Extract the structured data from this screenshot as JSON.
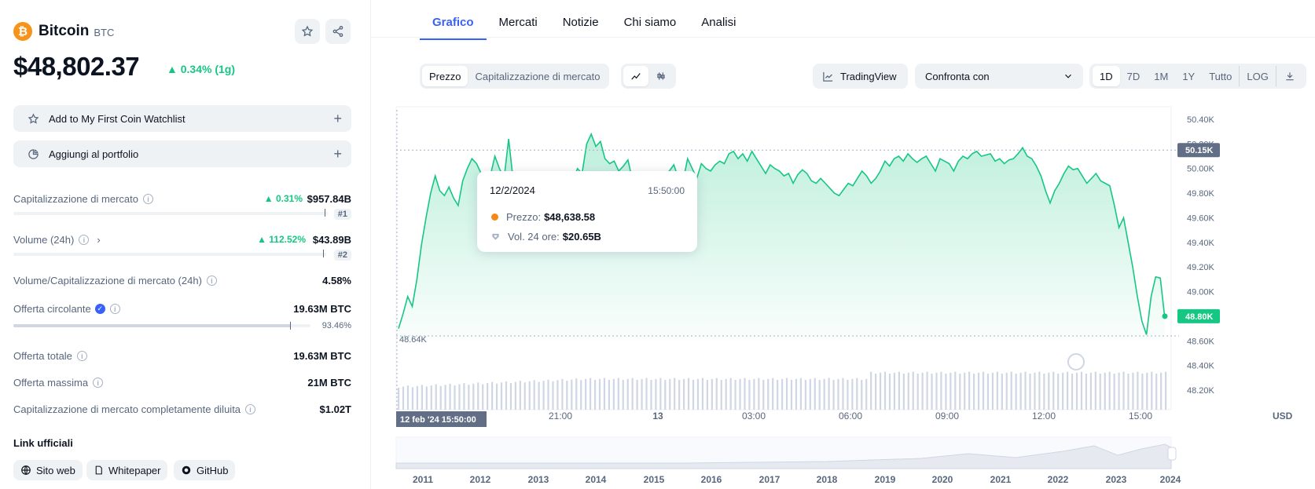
{
  "coin": {
    "name": "Bitcoin",
    "symbol": "BTC",
    "logo_glyph": "₿",
    "logo_color": "#f7931a"
  },
  "price": {
    "value": "$48,802.37",
    "change": "▲ 0.34% (1g)",
    "change_color": "#16c784"
  },
  "actions": {
    "watchlist": "Add to My First Coin Watchlist",
    "portfolio": "Aggiungi al portfolio"
  },
  "stats": {
    "market_cap": {
      "label": "Capitalizzazione di mercato",
      "change": "▲ 0.31%",
      "value": "$957.84B",
      "rank": "#1"
    },
    "volume": {
      "label": "Volume (24h)",
      "change": "▲ 112.52%",
      "value": "$43.89B",
      "rank": "#2"
    },
    "vol_mcap": {
      "label": "Volume/Capitalizzazione di mercato (24h)",
      "value": "4.58%"
    },
    "circulating": {
      "label": "Offerta circolante",
      "value": "19.63M BTC",
      "percent": "93.46%",
      "fill": 0.9346
    },
    "total": {
      "label": "Offerta totale",
      "value": "19.63M BTC"
    },
    "max": {
      "label": "Offerta massima",
      "value": "21M BTC"
    },
    "fdv": {
      "label": "Capitalizzazione di mercato completamente diluita",
      "value": "$1.02T"
    }
  },
  "links": {
    "title": "Link ufficiali",
    "items": [
      "Sito web",
      "Whitepaper",
      "GitHub"
    ]
  },
  "tabs": [
    "Grafico",
    "Mercati",
    "Notizie",
    "Chi siamo",
    "Analisi"
  ],
  "controls": {
    "type_options": [
      "Prezzo",
      "Capitalizzazione di mercato"
    ],
    "tradingview": "TradingView",
    "compare": "Confronta con",
    "ranges": [
      "1D",
      "7D",
      "1M",
      "1Y",
      "Tutto",
      "LOG"
    ]
  },
  "tooltip": {
    "date": "12/2/2024",
    "time": "15:50:00",
    "price_label": "Prezzo:",
    "price_value": "$48,638.58",
    "vol_label": "Vol. 24 ore:",
    "vol_value": "$20.65B"
  },
  "chart_data": {
    "type": "area",
    "y_ticks": [
      "50.40K",
      "50.20K",
      "50.00K",
      "49.80K",
      "49.60K",
      "49.40K",
      "49.20K",
      "49.00K",
      "48.80K",
      "48.60K",
      "48.40K",
      "48.20K"
    ],
    "ylim": [
      48200,
      50400
    ],
    "x_ticks": [
      "21:00",
      "13",
      "03:00",
      "06:00",
      "09:00",
      "12:00",
      "15:00"
    ],
    "crosshair_label": "12 feb '24  15:50:00",
    "high_label": "50.15K",
    "high_value": 50150,
    "low_label": "48.64K",
    "low_value": 48640,
    "current_label": "48.80K",
    "current_value": 48800,
    "currency": "USD",
    "prices": [
      48700,
      48820,
      48960,
      48880,
      49100,
      49380,
      49600,
      49800,
      49940,
      49820,
      49780,
      49850,
      49760,
      49700,
      49900,
      50000,
      50080,
      50040,
      49960,
      49900,
      49940,
      50100,
      50000,
      49920,
      50240,
      49900,
      49940,
      49850,
      49700,
      49800,
      49900,
      49950,
      49880,
      49760,
      49850,
      49900,
      49820,
      49780,
      49900,
      50000,
      49960,
      50200,
      50280,
      50180,
      50220,
      50080,
      50040,
      50060,
      49980,
      50020,
      50070,
      49900,
      49800,
      49820,
      49880,
      49760,
      49820,
      49900,
      49950,
      49980,
      50030,
      49920,
      49900,
      50080,
      50000,
      49920,
      50040,
      50000,
      49980,
      50030,
      50060,
      50040,
      50120,
      50140,
      50080,
      50120,
      50060,
      50140,
      50080,
      50020,
      49960,
      50030,
      50000,
      49980,
      49940,
      49960,
      49880,
      49950,
      49990,
      49960,
      49900,
      49880,
      49920,
      49880,
      49840,
      49800,
      49780,
      49830,
      49880,
      49860,
      49920,
      49980,
      49940,
      49880,
      49920,
      49980,
      50060,
      50020,
      50080,
      50100,
      50060,
      50120,
      50080,
      50050,
      50080,
      50100,
      50040,
      49980,
      50080,
      50060,
      50040,
      49980,
      50060,
      50100,
      50080,
      50120,
      50140,
      50100,
      50110,
      50120,
      50060,
      50080,
      50040,
      50070,
      50080,
      50120,
      50170,
      50100,
      50080,
      50020,
      49940,
      49820,
      49720,
      49820,
      49880,
      49960,
      50020,
      49990,
      50000,
      49940,
      49880,
      49920,
      49960,
      49900,
      49880,
      49860,
      49700,
      49520,
      49600,
      49400,
      49200,
      48960,
      48760,
      48650,
      48960,
      49120,
      49110,
      48780
    ],
    "x_axis_years": [
      "2011",
      "2012",
      "2013",
      "2014",
      "2015",
      "2016",
      "2017",
      "2018",
      "2019",
      "2020",
      "2021",
      "2022",
      "2023",
      "2024"
    ]
  }
}
